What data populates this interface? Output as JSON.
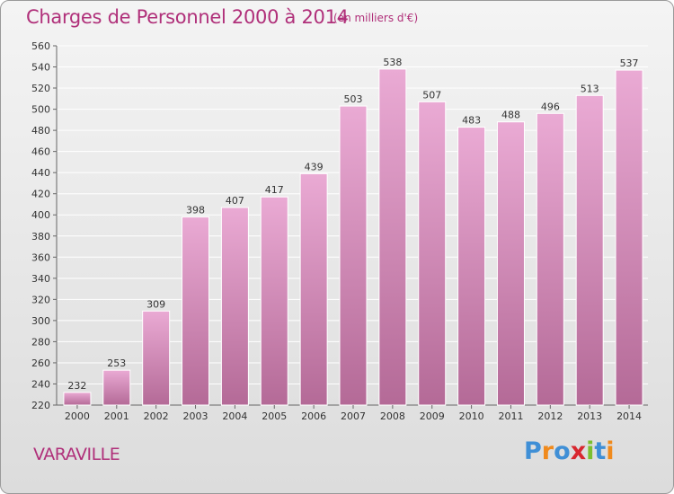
{
  "title": "Charges de Personnel 2000 à 2014",
  "subtitle": "(en milliers d'€)",
  "commune": "VARAVILLE",
  "logo": {
    "text": "Proxiti",
    "letters": [
      "P",
      "r",
      "o",
      "x",
      "i",
      "t",
      "i"
    ],
    "colors": [
      "#3f8fd6",
      "#f08a1c",
      "#3f8fd6",
      "#d8272f",
      "#7cbf2e",
      "#3f8fd6",
      "#f08a1c"
    ]
  },
  "colors": {
    "bar_top": "#eaaad4",
    "bar_bottom": "#b46a97",
    "text_accent": "#b0307a",
    "grid": "#ffffff"
  },
  "chart_data": {
    "type": "bar",
    "title": "Charges de Personnel 2000 à 2014",
    "subtitle": "(en milliers d'€)",
    "xlabel": "",
    "ylabel": "",
    "categories": [
      "2000",
      "2001",
      "2002",
      "2003",
      "2004",
      "2005",
      "2006",
      "2007",
      "2008",
      "2009",
      "2010",
      "2011",
      "2012",
      "2013",
      "2014"
    ],
    "values": [
      232,
      253,
      309,
      398,
      407,
      417,
      439,
      503,
      538,
      507,
      483,
      488,
      496,
      513,
      537
    ],
    "ylim": [
      220,
      560
    ],
    "yticks": [
      220,
      240,
      260,
      280,
      300,
      320,
      340,
      360,
      380,
      400,
      420,
      440,
      460,
      480,
      500,
      520,
      540,
      560
    ],
    "grid": true,
    "data_labels": true
  }
}
